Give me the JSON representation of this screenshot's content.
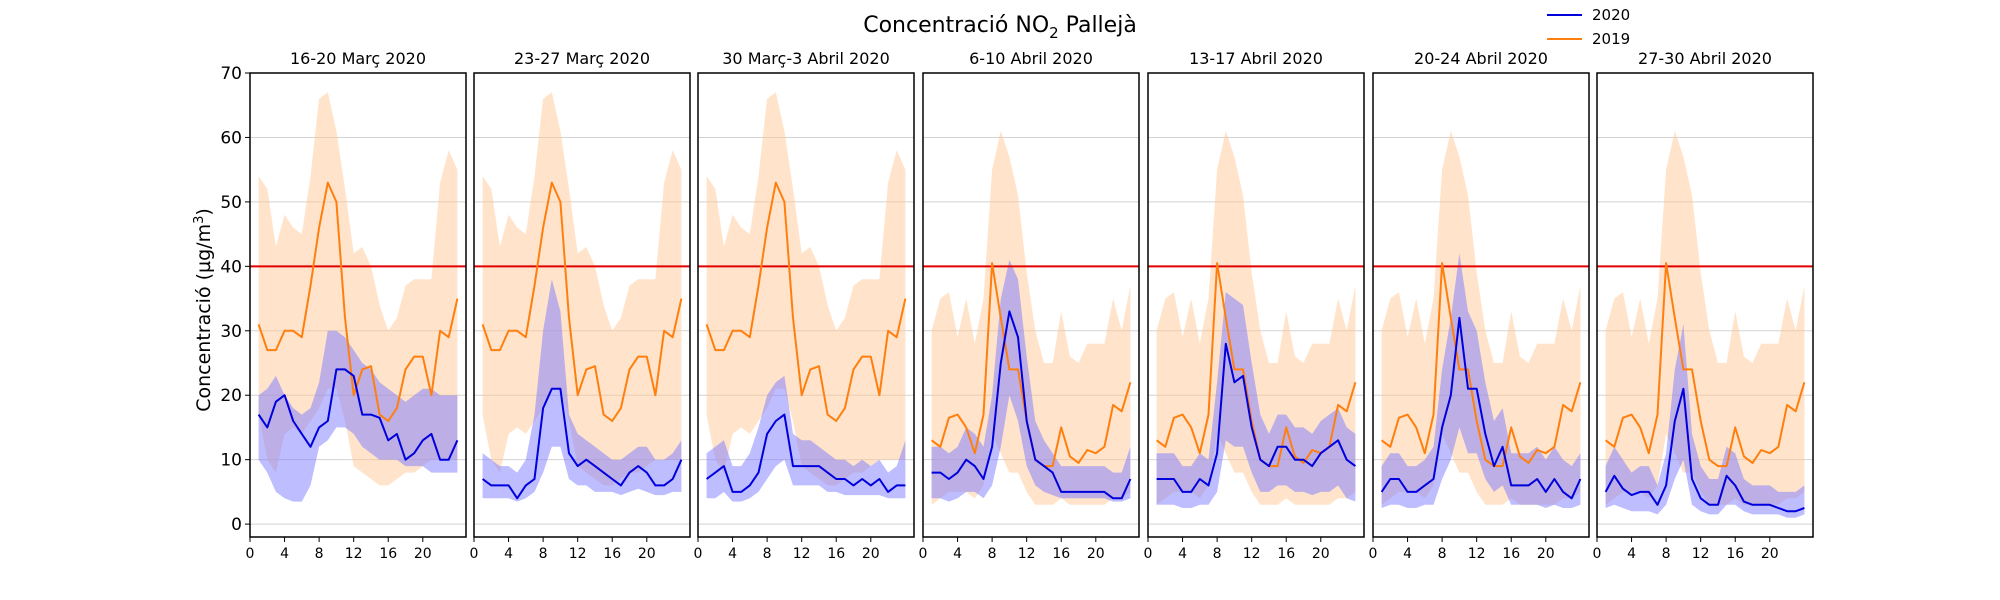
{
  "title": {
    "main": "Concentració NO",
    "sub": "2",
    "rest": " Pallejà"
  },
  "ylabel": {
    "main": "Concentració (µg/m",
    "sup": "3",
    "rest": ")"
  },
  "legend": [
    {
      "label": "2020",
      "color": "#0000dd"
    },
    {
      "label": "2019",
      "color": "#ff7f0e"
    }
  ],
  "colors": {
    "line_2020": "#0000dd",
    "line_2019": "#ff7f0e",
    "band_2020": "#7b7bff",
    "band_2019": "#ffc896",
    "limit": "#e00000",
    "grid": "#d3d3d3"
  },
  "chart_data": {
    "type": "line",
    "limit_value": 40,
    "ylim": [
      -2,
      70
    ],
    "xlim": [
      0,
      25
    ],
    "yticks": [
      0,
      10,
      20,
      30,
      40,
      50,
      60,
      70
    ],
    "xticks": [
      0,
      4,
      8,
      12,
      16,
      20
    ],
    "grid": "horizontal",
    "legend_position": "top-right",
    "panels": [
      {
        "title": "16-20 Març 2020",
        "x": [
          1,
          2,
          3,
          4,
          5,
          6,
          7,
          8,
          9,
          10,
          11,
          12,
          13,
          14,
          15,
          16,
          17,
          18,
          19,
          20,
          21,
          22,
          23,
          24
        ],
        "y2020": [
          17,
          15,
          19,
          20,
          16,
          14,
          12,
          15,
          16,
          24,
          24,
          23,
          17,
          17,
          16.5,
          13,
          14,
          10,
          11,
          13,
          14,
          10,
          10,
          13
        ],
        "band2020_low": [
          10,
          8,
          5,
          4,
          3.5,
          3.5,
          6,
          12,
          13,
          15,
          15,
          14,
          12,
          11,
          10,
          10,
          10,
          9,
          9,
          9,
          8,
          8,
          8,
          8
        ],
        "band2020_high": [
          20,
          21,
          23,
          20,
          18,
          17,
          18,
          22,
          30,
          30,
          29,
          27,
          25,
          24,
          22,
          21,
          20,
          19,
          20,
          21,
          21,
          20,
          20,
          20
        ],
        "y2019": [
          31,
          27,
          27,
          30,
          30,
          29,
          37,
          46,
          53,
          50,
          32,
          20,
          24,
          24.5,
          17,
          16,
          18,
          24,
          26,
          26,
          20,
          30,
          29,
          35
        ],
        "band2019_low": [
          17,
          10,
          8,
          14,
          15,
          14,
          16,
          18,
          21,
          21,
          16,
          9,
          8,
          7,
          6,
          6,
          7,
          8,
          8,
          9,
          10,
          10,
          10,
          10
        ],
        "band2019_high": [
          54,
          52,
          43,
          48,
          46,
          45,
          54,
          66,
          67,
          61,
          52,
          42,
          43,
          40,
          34,
          30,
          32,
          37,
          38,
          38,
          38,
          53,
          58,
          55
        ]
      },
      {
        "title": "23-27 Març 2020",
        "x": [
          1,
          2,
          3,
          4,
          5,
          6,
          7,
          8,
          9,
          10,
          11,
          12,
          13,
          14,
          15,
          16,
          17,
          18,
          19,
          20,
          21,
          22,
          23,
          24
        ],
        "y2020": [
          7,
          6,
          6,
          6,
          4,
          6,
          7,
          18,
          21,
          21,
          11,
          9,
          10,
          9,
          8,
          7,
          6,
          8,
          9,
          8,
          6,
          6,
          7,
          10
        ],
        "band2020_low": [
          4,
          4,
          4,
          4,
          3.5,
          4,
          5,
          8,
          12,
          12,
          7,
          6,
          6,
          5,
          5,
          5,
          4.5,
          5,
          5.5,
          5,
          4.5,
          4.5,
          5,
          5
        ],
        "band2020_high": [
          11,
          10,
          9,
          9,
          8,
          10,
          17,
          30,
          38,
          33,
          17,
          14,
          13,
          12,
          11,
          10,
          10,
          11,
          12,
          12,
          10,
          10,
          11,
          13
        ],
        "y2019": [
          31,
          27,
          27,
          30,
          30,
          29,
          37,
          46,
          53,
          50,
          32,
          20,
          24,
          24.5,
          17,
          16,
          18,
          24,
          26,
          26,
          20,
          30,
          29,
          35
        ],
        "band2019_low": [
          17,
          10,
          8,
          14,
          15,
          14,
          16,
          18,
          21,
          21,
          16,
          9,
          8,
          7,
          6,
          6,
          7,
          8,
          8,
          9,
          10,
          10,
          10,
          10
        ],
        "band2019_high": [
          54,
          52,
          43,
          48,
          46,
          45,
          54,
          66,
          67,
          61,
          52,
          42,
          43,
          40,
          34,
          30,
          32,
          37,
          38,
          38,
          38,
          53,
          58,
          55
        ]
      },
      {
        "title": "30 Març-3 Abril 2020",
        "x": [
          1,
          2,
          3,
          4,
          5,
          6,
          7,
          8,
          9,
          10,
          11,
          12,
          13,
          14,
          15,
          16,
          17,
          18,
          19,
          20,
          21,
          22,
          23,
          24
        ],
        "y2020": [
          7,
          8,
          9,
          5,
          5,
          6,
          8,
          14,
          16,
          17,
          9,
          9,
          9,
          9,
          8,
          7,
          7,
          6,
          7,
          6,
          7,
          5,
          6,
          6
        ],
        "band2020_low": [
          4,
          4,
          5,
          3.5,
          3.5,
          4,
          5,
          7,
          9,
          10,
          6,
          6,
          6,
          6,
          5,
          5,
          4.5,
          4.5,
          4.5,
          4.5,
          4.5,
          4,
          4,
          4
        ],
        "band2020_high": [
          11,
          12,
          13,
          9,
          9,
          11,
          15,
          20,
          22,
          23,
          14,
          13,
          13,
          12,
          11,
          10,
          10,
          9,
          10,
          9,
          10,
          8,
          9,
          13
        ],
        "y2019": [
          31,
          27,
          27,
          30,
          30,
          29,
          37,
          46,
          53,
          50,
          32,
          20,
          24,
          24.5,
          17,
          16,
          18,
          24,
          26,
          26,
          20,
          30,
          29,
          35
        ],
        "band2019_low": [
          17,
          10,
          8,
          14,
          15,
          14,
          16,
          18,
          21,
          21,
          16,
          9,
          8,
          7,
          6,
          6,
          7,
          8,
          8,
          9,
          10,
          10,
          10,
          10
        ],
        "band2019_high": [
          54,
          52,
          43,
          48,
          46,
          45,
          54,
          66,
          67,
          61,
          52,
          42,
          43,
          40,
          34,
          30,
          32,
          37,
          38,
          38,
          38,
          53,
          58,
          55
        ]
      },
      {
        "title": "6-10 Abril 2020",
        "x": [
          1,
          2,
          3,
          4,
          5,
          6,
          7,
          8,
          9,
          10,
          11,
          12,
          13,
          14,
          15,
          16,
          17,
          18,
          19,
          20,
          21,
          22,
          23,
          24
        ],
        "y2020": [
          8,
          8,
          7,
          8,
          10,
          9,
          7,
          12,
          25,
          33,
          29,
          16,
          10,
          9,
          8,
          5,
          5,
          5,
          5,
          5,
          5,
          4,
          4,
          7
        ],
        "band2020_low": [
          4,
          4,
          3.5,
          4,
          5,
          5,
          4,
          6,
          12,
          20,
          16,
          9,
          6,
          5,
          4.5,
          4,
          4,
          4,
          4,
          4,
          4,
          3.5,
          3.5,
          4
        ],
        "band2020_high": [
          12,
          12,
          11,
          12,
          15,
          14,
          12,
          20,
          35,
          41,
          38,
          26,
          16,
          13,
          11,
          9,
          9,
          9,
          9,
          9,
          9,
          8,
          8,
          12
        ],
        "y2019": [
          13,
          12,
          16.5,
          17,
          15,
          11,
          17,
          40.5,
          32,
          24,
          24,
          16,
          10,
          9,
          9,
          15,
          10.5,
          9.5,
          11.5,
          11,
          12,
          18.5,
          17.5,
          22
        ],
        "band2019_low": [
          3,
          4,
          5,
          5,
          5,
          4,
          6,
          14,
          11,
          8,
          8,
          5,
          3,
          3,
          3,
          4,
          3,
          3,
          3,
          3,
          3,
          4,
          4,
          5
        ],
        "band2019_high": [
          30,
          35,
          36,
          29,
          35,
          28,
          35,
          55,
          61,
          57,
          51,
          39,
          30,
          25,
          25,
          33,
          26,
          25,
          28,
          28,
          28,
          35,
          30,
          37
        ]
      },
      {
        "title": "13-17 Abril 2020",
        "x": [
          1,
          2,
          3,
          4,
          5,
          6,
          7,
          8,
          9,
          10,
          11,
          12,
          13,
          14,
          15,
          16,
          17,
          18,
          19,
          20,
          21,
          22,
          23,
          24
        ],
        "y2020": [
          7,
          7,
          7,
          5,
          5,
          7,
          6,
          11,
          28,
          22,
          23,
          15,
          10,
          9,
          12,
          12,
          10,
          10,
          9,
          11,
          12,
          13,
          10,
          9
        ],
        "band2020_low": [
          3,
          3,
          3,
          2.5,
          2.5,
          3,
          3,
          5,
          13,
          12,
          12,
          8,
          5,
          5,
          6,
          6,
          5,
          5,
          4.5,
          5,
          5,
          6,
          4,
          3.5
        ],
        "band2020_high": [
          11,
          11,
          11,
          9,
          9,
          11,
          10,
          22,
          36,
          35,
          34,
          25,
          17,
          14,
          17,
          17,
          15,
          15,
          14,
          16,
          17,
          18,
          15,
          14
        ],
        "y2019": [
          13,
          12,
          16.5,
          17,
          15,
          11,
          17,
          40.5,
          32,
          24,
          24,
          16,
          10,
          9,
          9,
          15,
          10.5,
          9.5,
          11.5,
          11,
          12,
          18.5,
          17.5,
          22
        ],
        "band2019_low": [
          3,
          4,
          5,
          5,
          5,
          4,
          6,
          14,
          11,
          8,
          8,
          5,
          3,
          3,
          3,
          4,
          3,
          3,
          3,
          3,
          3,
          4,
          4,
          5
        ],
        "band2019_high": [
          30,
          35,
          36,
          29,
          35,
          28,
          35,
          55,
          61,
          57,
          51,
          39,
          30,
          25,
          25,
          33,
          26,
          25,
          28,
          28,
          28,
          35,
          30,
          37
        ]
      },
      {
        "title": "20-24 Abril 2020",
        "x": [
          1,
          2,
          3,
          4,
          5,
          6,
          7,
          8,
          9,
          10,
          11,
          12,
          13,
          14,
          15,
          16,
          17,
          18,
          19,
          20,
          21,
          22,
          23,
          24
        ],
        "y2020": [
          5,
          7,
          7,
          5,
          5,
          6,
          7,
          15,
          20,
          32,
          21,
          21,
          14,
          9,
          12,
          6,
          6,
          6,
          7,
          5,
          7,
          5,
          4,
          7
        ],
        "band2020_low": [
          2.5,
          3,
          3,
          2.5,
          2.5,
          3,
          3,
          7,
          10,
          15,
          11,
          11,
          7,
          5,
          6,
          3,
          3,
          3,
          3,
          2.5,
          3,
          2.5,
          2.5,
          3
        ],
        "band2020_high": [
          9,
          11,
          11,
          9,
          9,
          10,
          12,
          24,
          32,
          42,
          33,
          30,
          22,
          16,
          18,
          11,
          11,
          11,
          12,
          10,
          12,
          10,
          9,
          11
        ],
        "y2019": [
          13,
          12,
          16.5,
          17,
          15,
          11,
          17,
          40.5,
          32,
          24,
          24,
          16,
          10,
          9,
          9,
          15,
          10.5,
          9.5,
          11.5,
          11,
          12,
          18.5,
          17.5,
          22
        ],
        "band2019_low": [
          3,
          4,
          5,
          5,
          5,
          4,
          6,
          14,
          11,
          8,
          8,
          5,
          3,
          3,
          3,
          4,
          3,
          3,
          3,
          3,
          3,
          4,
          4,
          5
        ],
        "band2019_high": [
          30,
          35,
          36,
          29,
          35,
          28,
          35,
          55,
          61,
          57,
          51,
          39,
          30,
          25,
          25,
          33,
          26,
          25,
          28,
          28,
          28,
          35,
          30,
          37
        ]
      },
      {
        "title": "27-30 Abril 2020",
        "x": [
          1,
          2,
          3,
          4,
          5,
          6,
          7,
          8,
          9,
          10,
          11,
          12,
          13,
          14,
          15,
          16,
          17,
          18,
          19,
          20,
          21,
          22,
          23,
          24
        ],
        "y2020": [
          5,
          7.5,
          5.5,
          4.5,
          5,
          5,
          3,
          6,
          16,
          21,
          7,
          4,
          3,
          3,
          7.5,
          6,
          3.5,
          3,
          3,
          3,
          2.5,
          2,
          2,
          2.5
        ],
        "band2020_low": [
          2.5,
          3,
          2.5,
          2,
          2,
          2,
          1.5,
          3,
          7,
          10,
          3,
          2,
          1.5,
          1.5,
          3,
          3,
          2,
          1.5,
          1.5,
          1.5,
          1.5,
          1,
          1,
          1.5
        ],
        "band2020_high": [
          9,
          12,
          10,
          8,
          9,
          9,
          6,
          11,
          24,
          31,
          14,
          9,
          7,
          7,
          12,
          11,
          7,
          6,
          6,
          6,
          5,
          5,
          5,
          6
        ],
        "y2019": [
          13,
          12,
          16.5,
          17,
          15,
          11,
          17,
          40.5,
          32,
          24,
          24,
          16,
          10,
          9,
          9,
          15,
          10.5,
          9.5,
          11.5,
          11,
          12,
          18.5,
          17.5,
          22
        ],
        "band2019_low": [
          3,
          4,
          5,
          5,
          5,
          4,
          6,
          14,
          11,
          8,
          8,
          5,
          3,
          3,
          3,
          4,
          3,
          3,
          3,
          3,
          3,
          4,
          4,
          5
        ],
        "band2019_high": [
          30,
          35,
          36,
          29,
          35,
          28,
          35,
          55,
          61,
          57,
          51,
          39,
          30,
          25,
          25,
          33,
          26,
          25,
          28,
          28,
          28,
          35,
          30,
          37
        ]
      }
    ]
  }
}
